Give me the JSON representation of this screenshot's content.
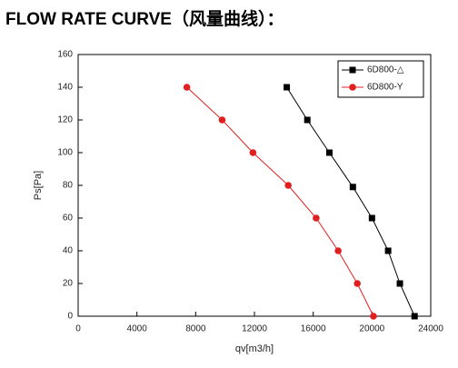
{
  "chart_data": {
    "type": "line",
    "title": "FLOW RATE CURVE（风量曲线）：",
    "x_label": "qv[m3/h]",
    "y_label": "Ps[Pa]",
    "xlim": [
      0,
      24000
    ],
    "xticks": [
      0,
      4000,
      8000,
      12000,
      16000,
      20000,
      24000
    ],
    "ylim": [
      0,
      160
    ],
    "yticks": [
      0,
      20,
      40,
      60,
      80,
      100,
      120,
      140,
      160
    ],
    "legend": "top-right",
    "series": [
      {
        "name": "6D800-△",
        "color": "#000000",
        "marker": "square",
        "x": [
          14200,
          15600,
          17100,
          18700,
          20000,
          21100,
          21900,
          22900
        ],
        "values": [
          140,
          120,
          100,
          79,
          60,
          40,
          20,
          0
        ]
      },
      {
        "name": "6D800-Y",
        "color": "#e02020",
        "marker": "circle",
        "x": [
          7400,
          9800,
          11900,
          14300,
          16200,
          17700,
          19000,
          20100
        ],
        "values": [
          140,
          120,
          100,
          80,
          60,
          40,
          20,
          0
        ]
      }
    ]
  }
}
